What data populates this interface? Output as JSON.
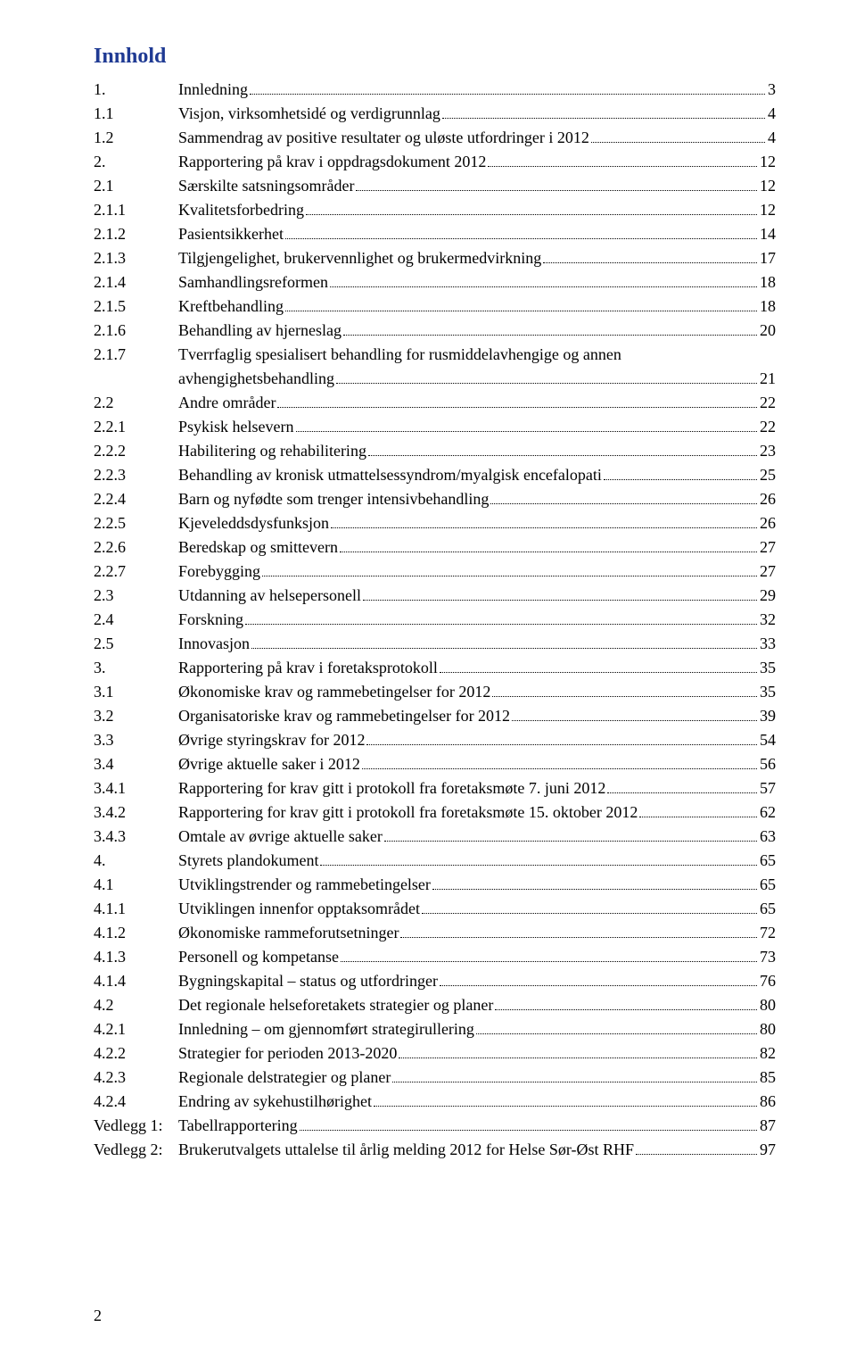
{
  "title": "Innhold",
  "title_color": "#1f3a93",
  "page_number": "2",
  "entries": [
    {
      "level": 0,
      "num": "1.",
      "text": "Innledning",
      "page": "3"
    },
    {
      "level": 1,
      "num": "1.1",
      "text": "Visjon, virksomhetsidé og verdigrunnlag",
      "page": "4"
    },
    {
      "level": 1,
      "num": "1.2",
      "text": "Sammendrag av positive resultater og uløste utfordringer i 2012",
      "page": "4"
    },
    {
      "level": 0,
      "num": "2.",
      "text": "Rapportering på krav i oppdragsdokument 2012",
      "page": "12"
    },
    {
      "level": 1,
      "num": "2.1",
      "text": "Særskilte satsningsområder",
      "page": "12"
    },
    {
      "level": 2,
      "num": "2.1.1",
      "text": "Kvalitetsforbedring",
      "page": "12"
    },
    {
      "level": 2,
      "num": "2.1.2",
      "text": "Pasientsikkerhet",
      "page": "14"
    },
    {
      "level": 2,
      "num": "2.1.3",
      "text": "Tilgjengelighet, brukervennlighet og brukermedvirkning",
      "page": "17"
    },
    {
      "level": 2,
      "num": "2.1.4",
      "text": "Samhandlingsreformen",
      "page": "18"
    },
    {
      "level": 2,
      "num": "2.1.5",
      "text": "Kreftbehandling",
      "page": "18"
    },
    {
      "level": 2,
      "num": "2.1.6",
      "text": "Behandling av hjerneslag",
      "page": "20"
    },
    {
      "level": 2,
      "num": "2.1.7",
      "text": "Tverrfaglig spesialisert behandling for rusmiddelavhengige og annen avhengighetsbehandling",
      "page": "21",
      "multiline": true
    },
    {
      "level": 1,
      "num": "2.2",
      "text": "Andre områder",
      "page": "22"
    },
    {
      "level": 2,
      "num": "2.2.1",
      "text": "Psykisk helsevern",
      "page": "22"
    },
    {
      "level": 2,
      "num": "2.2.2",
      "text": "Habilitering og rehabilitering",
      "page": "23"
    },
    {
      "level": 2,
      "num": "2.2.3",
      "text": "Behandling av kronisk utmattelsessyndrom/myalgisk encefalopati",
      "page": "25"
    },
    {
      "level": 2,
      "num": "2.2.4",
      "text": "Barn og nyfødte som trenger intensivbehandling",
      "page": "26"
    },
    {
      "level": 2,
      "num": "2.2.5",
      "text": "Kjeveleddsdysfunksjon",
      "page": "26"
    },
    {
      "level": 2,
      "num": "2.2.6",
      "text": "Beredskap og smittevern",
      "page": "27"
    },
    {
      "level": 2,
      "num": "2.2.7",
      "text": "Forebygging",
      "page": "27"
    },
    {
      "level": 1,
      "num": "2.3",
      "text": "Utdanning av helsepersonell",
      "page": "29"
    },
    {
      "level": 1,
      "num": "2.4",
      "text": "Forskning",
      "page": "32"
    },
    {
      "level": 1,
      "num": "2.5",
      "text": "Innovasjon",
      "page": "33"
    },
    {
      "level": 0,
      "num": "3.",
      "text": "Rapportering på krav i foretaksprotokoll",
      "page": "35"
    },
    {
      "level": 1,
      "num": "3.1",
      "text": "Økonomiske krav og rammebetingelser for 2012",
      "page": "35"
    },
    {
      "level": 1,
      "num": "3.2",
      "text": "Organisatoriske krav og rammebetingelser for 2012",
      "page": "39"
    },
    {
      "level": 1,
      "num": "3.3",
      "text": "Øvrige styringskrav for 2012",
      "page": "54"
    },
    {
      "level": 1,
      "num": "3.4",
      "text": "Øvrige aktuelle saker i 2012",
      "page": "56"
    },
    {
      "level": 2,
      "num": "3.4.1",
      "text": "Rapportering for krav gitt i protokoll fra foretaksmøte 7. juni 2012",
      "page": "57"
    },
    {
      "level": 2,
      "num": "3.4.2",
      "text": "Rapportering for krav gitt i protokoll fra foretaksmøte 15. oktober 2012",
      "page": "62"
    },
    {
      "level": 2,
      "num": "3.4.3",
      "text": "Omtale av øvrige aktuelle saker",
      "page": "63"
    },
    {
      "level": 0,
      "num": "4.",
      "text": "Styrets plandokument",
      "page": "65"
    },
    {
      "level": 1,
      "num": "4.1",
      "text": "Utviklingstrender og rammebetingelser",
      "page": "65"
    },
    {
      "level": 2,
      "num": "4.1.1",
      "text": "Utviklingen innenfor opptaksområdet",
      "page": "65"
    },
    {
      "level": 2,
      "num": "4.1.2",
      "text": "Økonomiske rammeforutsetninger",
      "page": "72"
    },
    {
      "level": 2,
      "num": "4.1.3",
      "text": "Personell og kompetanse",
      "page": "73"
    },
    {
      "level": 2,
      "num": "4.1.4",
      "text": "Bygningskapital – status og utfordringer",
      "page": "76"
    },
    {
      "level": 1,
      "num": "4.2",
      "text": "Det regionale helseforetakets strategier og planer",
      "page": "80"
    },
    {
      "level": 2,
      "num": "4.2.1",
      "text": "Innledning – om gjennomført strategirullering",
      "page": "80"
    },
    {
      "level": 2,
      "num": "4.2.2",
      "text": "Strategier for perioden 2013-2020",
      "page": "82"
    },
    {
      "level": 2,
      "num": "4.2.3",
      "text": "Regionale delstrategier og planer",
      "page": "85"
    },
    {
      "level": 2,
      "num": "4.2.4",
      "text": "Endring av sykehustilhørighet",
      "page": "86"
    },
    {
      "level": 1,
      "num": "Vedlegg 1:",
      "text": "Tabellrapportering",
      "page": "87",
      "wide": true
    },
    {
      "level": 1,
      "num": "Vedlegg 2:",
      "text": "Brukerutvalgets uttalelse til årlig melding 2012 for Helse Sør-Øst RHF",
      "page": "97",
      "wide": true
    }
  ]
}
